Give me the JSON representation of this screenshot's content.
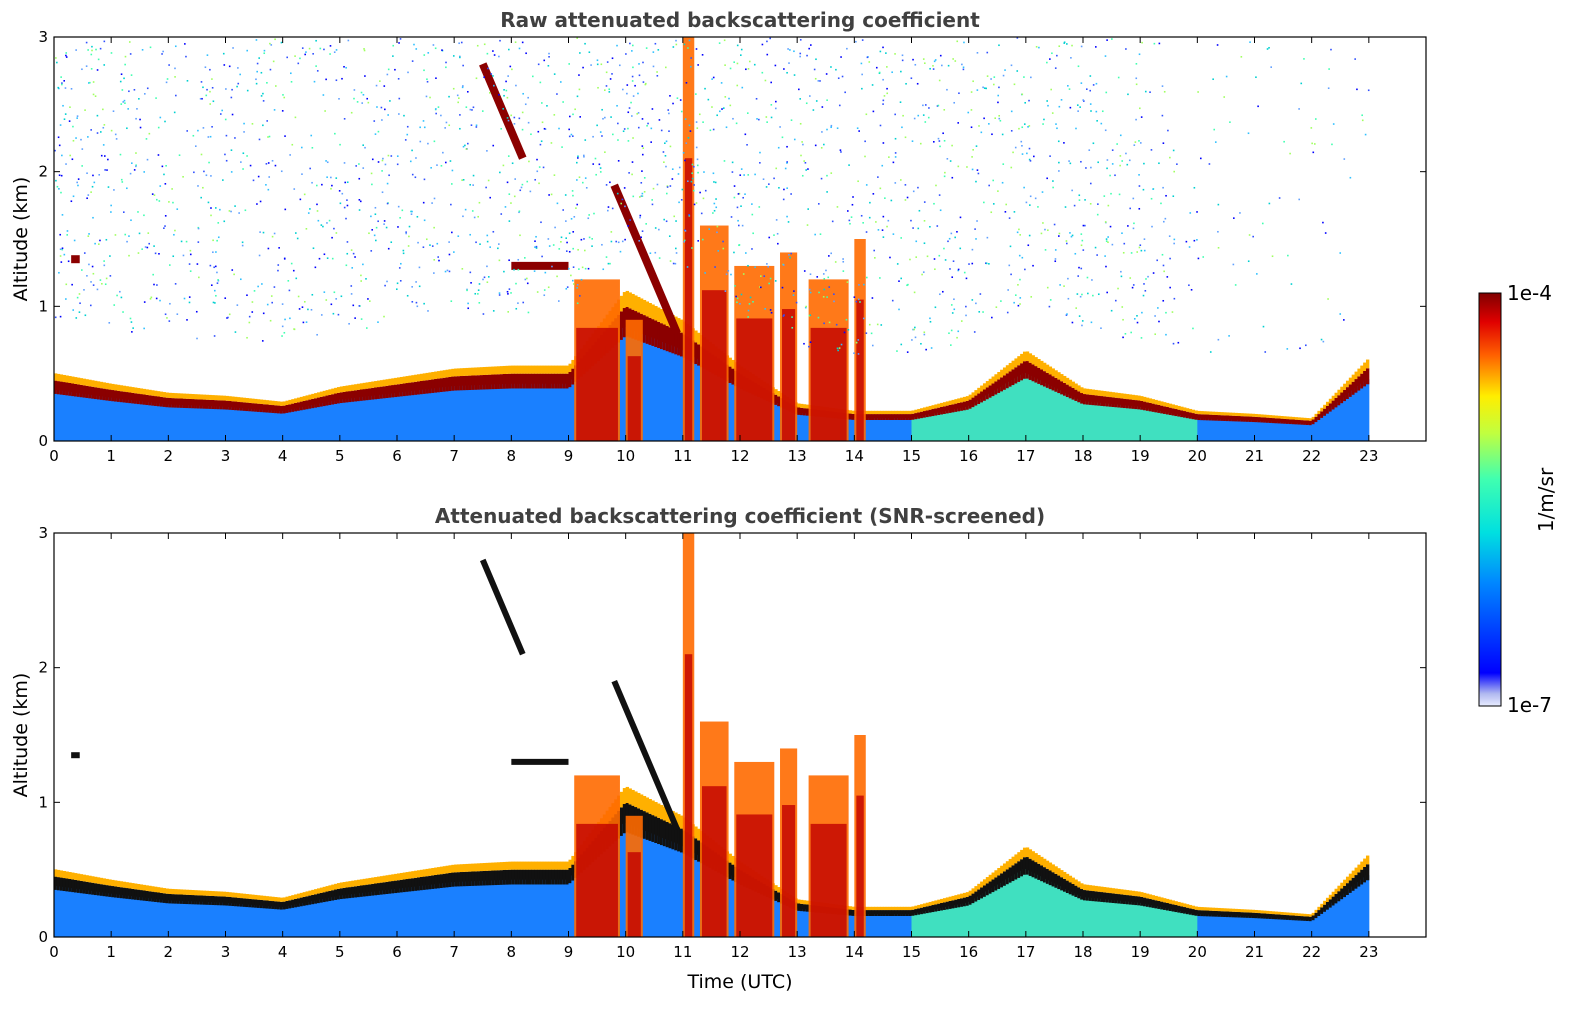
{
  "chart_data": [
    {
      "type": "heatmap",
      "title": "Raw attenuated backscattering coefficient",
      "xlabel": "",
      "ylabel": "Altitude (km)",
      "xlim": [
        0,
        24
      ],
      "ylim": [
        0,
        3
      ],
      "xticks": [
        "0",
        "1",
        "2",
        "3",
        "4",
        "5",
        "6",
        "7",
        "8",
        "9",
        "10",
        "11",
        "12",
        "13",
        "14",
        "15",
        "16",
        "17",
        "18",
        "19",
        "20",
        "21",
        "22",
        "23"
      ],
      "yticks": [
        "0",
        "1",
        "2",
        "3"
      ],
      "data_end_time": 23,
      "boundary_layer_top_km": [
        [
          0,
          0.45
        ],
        [
          1,
          0.38
        ],
        [
          2,
          0.32
        ],
        [
          3,
          0.3
        ],
        [
          4,
          0.26
        ],
        [
          5,
          0.36
        ],
        [
          6,
          0.42
        ],
        [
          7,
          0.48
        ],
        [
          8,
          0.5
        ],
        [
          9,
          0.5
        ],
        [
          10,
          1.0
        ],
        [
          11,
          0.8
        ],
        [
          12,
          0.5
        ],
        [
          13,
          0.25
        ],
        [
          14,
          0.2
        ],
        [
          15,
          0.2
        ],
        [
          16,
          0.3
        ],
        [
          17,
          0.6
        ],
        [
          18,
          0.35
        ],
        [
          19,
          0.3
        ],
        [
          20,
          0.2
        ],
        [
          21,
          0.18
        ],
        [
          22,
          0.15
        ],
        [
          23,
          0.55
        ]
      ],
      "cloud_layers": [
        {
          "time": [
            0.3,
            0.45
          ],
          "altitude_km": 1.35
        },
        {
          "time": [
            7.5,
            8.2
          ],
          "altitude_km_from": 2.8,
          "altitude_km_to": 2.1
        },
        {
          "time": [
            8.0,
            9.0
          ],
          "altitude_km": 1.3
        },
        {
          "time": [
            9.8,
            10.9
          ],
          "altitude_km_from": 1.9,
          "altitude_km_to": 0.8
        }
      ],
      "screening": "none"
    },
    {
      "type": "heatmap",
      "title": "Attenuated backscattering coefficient (SNR-screened)",
      "xlabel": "Time (UTC)",
      "ylabel": "Altitude (km)",
      "xlim": [
        0,
        24
      ],
      "ylim": [
        0,
        3
      ],
      "xticks": [
        "0",
        "1",
        "2",
        "3",
        "4",
        "5",
        "6",
        "7",
        "8",
        "9",
        "10",
        "11",
        "12",
        "13",
        "14",
        "15",
        "16",
        "17",
        "18",
        "19",
        "20",
        "21",
        "22",
        "23"
      ],
      "yticks": [
        "0",
        "1",
        "2",
        "3"
      ],
      "data_end_time": 23,
      "screening": "SNR"
    }
  ],
  "colorbar": {
    "max_label": "1e-4",
    "min_label": "1e-7",
    "units_label": "1/m/sr",
    "scale": "log",
    "colormap": "jet"
  }
}
